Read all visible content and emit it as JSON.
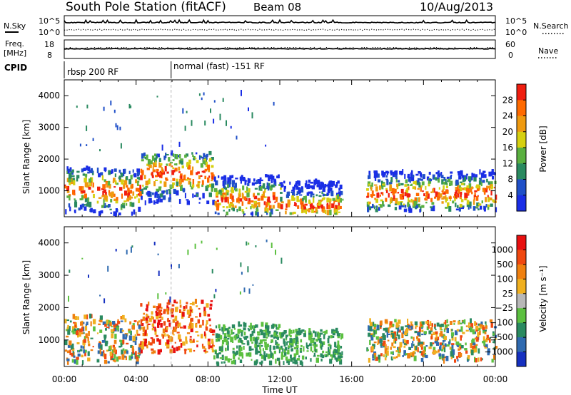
{
  "header": {
    "title": "South Pole Station (fitACF)",
    "beam": "Beam 08",
    "date": "10/Aug/2013"
  },
  "strip_labels": {
    "nsky": "N.Sky",
    "nsearch": "N.Search",
    "freq_line1": "Freq.",
    "freq_line2": "[MHz]",
    "nave": "Nave",
    "cpid": "CPID",
    "nsky_ticks": [
      "10^5",
      "10^0"
    ],
    "nsearch_ticks": [
      "10^5",
      "10^0"
    ],
    "freq_ticks": [
      "18",
      "8"
    ],
    "nave_ticks": [
      "60",
      "0"
    ]
  },
  "cpid_segments": [
    {
      "label": "rbsp 200 RF",
      "start_hour": 0.0
    },
    {
      "label": "normal (fast) -151 RF",
      "start_hour": 5.95
    }
  ],
  "colors": {
    "power_scale": [
      "#1a2ee6",
      "#2050c8",
      "#2a8a60",
      "#5ab040",
      "#d6d010",
      "#ef9a10",
      "#ff6a00",
      "#f01e10"
    ],
    "velocity_scale": [
      "#1530c0",
      "#2f6ab0",
      "#2a8a60",
      "#5cc040",
      "#b8b8b8",
      "#f0b020",
      "#ef8010",
      "#f04810",
      "#e81010"
    ]
  },
  "chart_data": [
    {
      "type": "heatmap",
      "name": "power-panel",
      "ylabel": "Slant Range [km]",
      "xlabel": "Time UT",
      "x_range_hours": [
        0,
        24
      ],
      "ylim": [
        180,
        4500
      ],
      "y_ticks": [
        1000,
        2000,
        3000,
        4000
      ],
      "colorbar_label": "Power [dB]",
      "colorbar_ticks": [
        "28",
        "24",
        "20",
        "16",
        "12",
        "8",
        "4"
      ],
      "colorbar_range": [
        0,
        32
      ],
      "echo_regions": [
        {
          "t_start": 0.0,
          "t_end": 1.6,
          "r_low": 300,
          "r_high": 1750,
          "core": 1050
        },
        {
          "t_start": 1.8,
          "t_end": 4.2,
          "r_low": 250,
          "r_high": 1700,
          "core": 1000
        },
        {
          "t_start": 4.2,
          "t_end": 8.3,
          "r_low": 600,
          "r_high": 2200,
          "core": 1550
        },
        {
          "t_start": 8.3,
          "t_end": 12.0,
          "r_low": 250,
          "r_high": 1500,
          "core": 700
        },
        {
          "t_start": 12.0,
          "t_end": 15.5,
          "r_low": 250,
          "r_high": 1300,
          "core": 500
        },
        {
          "t_start": 16.8,
          "t_end": 24.0,
          "r_low": 350,
          "r_high": 1600,
          "core": 900
        }
      ]
    },
    {
      "type": "heatmap",
      "name": "velocity-panel",
      "ylabel": "Slant Range [km]",
      "xlabel": "Time UT",
      "x_range_hours": [
        0,
        24
      ],
      "ylim": [
        180,
        4500
      ],
      "y_ticks": [
        1000,
        2000,
        3000,
        4000
      ],
      "colorbar_label": "Velocity [m s⁻¹]",
      "colorbar_ticks": [
        "1000",
        "500",
        "100",
        "25",
        "−25",
        "−100",
        "−500",
        "−1000"
      ],
      "x_tick_labels": [
        "00:00",
        "04:00",
        "08:00",
        "12:00",
        "16:00",
        "20:00",
        "00:00"
      ],
      "x_tick_hours": [
        0,
        4,
        8,
        12,
        16,
        20,
        24
      ],
      "echo_regions": [
        {
          "t_start": 0.0,
          "t_end": 1.6,
          "r_low": 300,
          "r_high": 1750,
          "core": 1050
        },
        {
          "t_start": 1.8,
          "t_end": 4.2,
          "r_low": 250,
          "r_high": 1700,
          "core": 1000
        },
        {
          "t_start": 4.2,
          "t_end": 8.3,
          "r_low": 600,
          "r_high": 2200,
          "core": 1550
        },
        {
          "t_start": 8.3,
          "t_end": 12.0,
          "r_low": 250,
          "r_high": 1500,
          "core": 700
        },
        {
          "t_start": 12.0,
          "t_end": 15.5,
          "r_low": 250,
          "r_high": 1300,
          "core": 500
        },
        {
          "t_start": 16.8,
          "t_end": 24.0,
          "r_low": 350,
          "r_high": 1600,
          "core": 900
        }
      ]
    }
  ]
}
